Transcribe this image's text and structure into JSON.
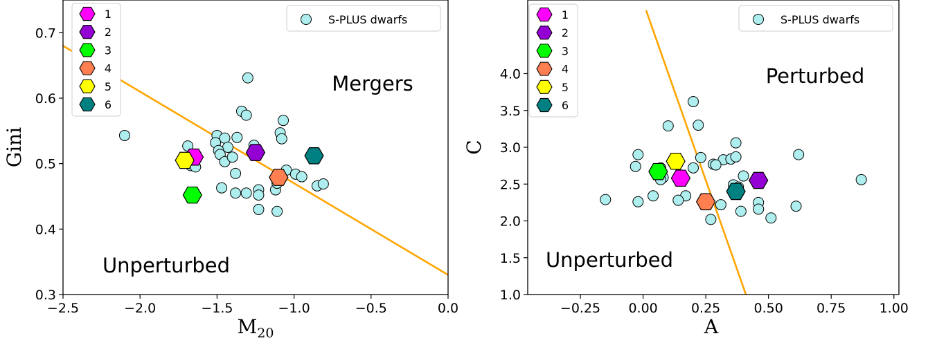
{
  "chart_data": [
    {
      "type": "scatter",
      "xlabel": "M",
      "xlabel_sub": "20",
      "ylabel": "Gini",
      "xlim": [
        -2.5,
        0.0
      ],
      "ylim": [
        0.3,
        0.75
      ],
      "xticks": [
        "−2.5",
        "−2.0",
        "−1.5",
        "−1.0",
        "−0.5",
        "0.0"
      ],
      "xtick_values": [
        -2.5,
        -2.0,
        -1.5,
        -1.0,
        -0.5,
        0.0
      ],
      "yticks": [
        "0.3",
        "0.4",
        "0.5",
        "0.6",
        "0.7"
      ],
      "ytick_values": [
        0.3,
        0.4,
        0.5,
        0.6,
        0.7
      ],
      "grid": false,
      "region_labels": {
        "upper": "Mergers",
        "lower": "Unperturbed"
      },
      "boundary_line": {
        "color": "#FFA500",
        "x": [
          -2.5,
          0.0
        ],
        "y": [
          0.68,
          0.33
        ]
      },
      "legend_left": {
        "placement": "top-left",
        "entries": [
          {
            "label": "1",
            "color": "#FF00FF"
          },
          {
            "label": "2",
            "color": "#9400D3"
          },
          {
            "label": "3",
            "color": "#00FF00"
          },
          {
            "label": "4",
            "color": "#FF7F50"
          },
          {
            "label": "5",
            "color": "#FFFF00"
          },
          {
            "label": "6",
            "color": "#008080"
          }
        ]
      },
      "legend_right": {
        "placement": "top-right",
        "label": "S-PLUS dwarfs",
        "color": "#AFEEEE"
      },
      "series": [
        {
          "name": "S-PLUS dwarfs",
          "color": "#AFEEEE",
          "points": [
            [
              -2.1,
              0.543
            ],
            [
              -1.3,
              0.631
            ],
            [
              -1.34,
              0.58
            ],
            [
              -1.31,
              0.574
            ],
            [
              -1.07,
              0.566
            ],
            [
              -1.09,
              0.547
            ],
            [
              -1.08,
              0.538
            ],
            [
              -1.5,
              0.543
            ],
            [
              -1.51,
              0.532
            ],
            [
              -1.45,
              0.539
            ],
            [
              -1.37,
              0.54
            ],
            [
              -1.26,
              0.528
            ],
            [
              -1.43,
              0.525
            ],
            [
              -1.49,
              0.52
            ],
            [
              -1.48,
              0.514
            ],
            [
              -1.45,
              0.503
            ],
            [
              -1.4,
              0.51
            ],
            [
              -1.69,
              0.527
            ],
            [
              -1.68,
              0.51
            ],
            [
              -1.67,
              0.497
            ],
            [
              -1.64,
              0.495
            ],
            [
              -1.38,
              0.485
            ],
            [
              -1.05,
              0.49
            ],
            [
              -0.99,
              0.484
            ],
            [
              -0.95,
              0.48
            ],
            [
              -1.47,
              0.463
            ],
            [
              -1.38,
              0.455
            ],
            [
              -1.31,
              0.455
            ],
            [
              -1.23,
              0.46
            ],
            [
              -1.23,
              0.452
            ],
            [
              -1.12,
              0.46
            ],
            [
              -1.11,
              0.47
            ],
            [
              -0.85,
              0.466
            ],
            [
              -0.81,
              0.469
            ],
            [
              -1.23,
              0.43
            ],
            [
              -1.11,
              0.427
            ]
          ]
        },
        {
          "name": "1",
          "color": "#FF00FF",
          "points": [
            [
              -1.65,
              0.51
            ]
          ]
        },
        {
          "name": "2",
          "color": "#9400D3",
          "points": [
            [
              -1.25,
              0.517
            ]
          ]
        },
        {
          "name": "3",
          "color": "#00FF00",
          "points": [
            [
              -1.66,
              0.452
            ]
          ]
        },
        {
          "name": "4",
          "color": "#FF7F50",
          "points": [
            [
              -1.1,
              0.479
            ]
          ]
        },
        {
          "name": "5",
          "color": "#FFFF00",
          "points": [
            [
              -1.71,
              0.505
            ]
          ]
        },
        {
          "name": "6",
          "color": "#008080",
          "points": [
            [
              -0.87,
              0.512
            ]
          ]
        }
      ]
    },
    {
      "type": "scatter",
      "xlabel": "A",
      "ylabel": "C",
      "xlim": [
        -0.46,
        1.02
      ],
      "ylim": [
        1.0,
        5.0
      ],
      "xticks": [
        "−0.25",
        "0.00",
        "0.25",
        "0.50",
        "0.75",
        "1.00"
      ],
      "xtick_values": [
        -0.25,
        0.0,
        0.25,
        0.5,
        0.75,
        1.0
      ],
      "yticks": [
        "1.0",
        "1.5",
        "2.0",
        "2.5",
        "3.0",
        "3.5",
        "4.0"
      ],
      "ytick_values": [
        1.0,
        1.5,
        2.0,
        2.5,
        3.0,
        3.5,
        4.0
      ],
      "grid": false,
      "region_labels": {
        "upper": "Perturbed",
        "lower": "Unperturbed"
      },
      "boundary_line": {
        "color": "#FFA500",
        "x": [
          0.012,
          0.41
        ],
        "y": [
          4.86,
          1.0
        ]
      },
      "legend_left": {
        "placement": "top-left",
        "entries": [
          {
            "label": "1",
            "color": "#FF00FF"
          },
          {
            "label": "2",
            "color": "#9400D3"
          },
          {
            "label": "3",
            "color": "#00FF00"
          },
          {
            "label": "4",
            "color": "#FF7F50"
          },
          {
            "label": "5",
            "color": "#FFFF00"
          },
          {
            "label": "6",
            "color": "#008080"
          }
        ]
      },
      "legend_right": {
        "placement": "top-right",
        "label": "S-PLUS dwarfs",
        "color": "#AFEEEE"
      },
      "series": [
        {
          "name": "S-PLUS dwarfs",
          "color": "#AFEEEE",
          "points": [
            [
              0.2,
              3.62
            ],
            [
              0.1,
              3.29
            ],
            [
              0.22,
              3.3
            ],
            [
              0.37,
              3.06
            ],
            [
              -0.02,
              2.9
            ],
            [
              0.62,
              2.9
            ],
            [
              0.23,
              2.86
            ],
            [
              0.32,
              2.83
            ],
            [
              0.35,
              2.84
            ],
            [
              0.37,
              2.87
            ],
            [
              -0.03,
              2.74
            ],
            [
              0.2,
              2.72
            ],
            [
              0.28,
              2.77
            ],
            [
              0.29,
              2.76
            ],
            [
              0.07,
              2.72
            ],
            [
              0.07,
              2.63
            ],
            [
              0.08,
              2.59
            ],
            [
              0.07,
              2.56
            ],
            [
              0.4,
              2.61
            ],
            [
              0.87,
              2.56
            ],
            [
              0.36,
              2.49
            ],
            [
              0.38,
              2.46
            ],
            [
              0.36,
              2.41
            ],
            [
              0.17,
              2.34
            ],
            [
              0.04,
              2.34
            ],
            [
              -0.15,
              2.29
            ],
            [
              -0.02,
              2.26
            ],
            [
              0.14,
              2.28
            ],
            [
              0.31,
              2.22
            ],
            [
              0.46,
              2.25
            ],
            [
              0.61,
              2.2
            ],
            [
              0.39,
              2.13
            ],
            [
              0.46,
              2.16
            ],
            [
              0.27,
              2.02
            ],
            [
              0.51,
              2.04
            ]
          ]
        },
        {
          "name": "1",
          "color": "#FF00FF",
          "points": [
            [
              0.15,
              2.58
            ]
          ]
        },
        {
          "name": "2",
          "color": "#9400D3",
          "points": [
            [
              0.46,
              2.55
            ]
          ]
        },
        {
          "name": "3",
          "color": "#00FF00",
          "points": [
            [
              0.06,
              2.67
            ]
          ]
        },
        {
          "name": "4",
          "color": "#FF7F50",
          "points": [
            [
              0.25,
              2.26
            ]
          ]
        },
        {
          "name": "5",
          "color": "#FFFF00",
          "points": [
            [
              0.13,
              2.81
            ]
          ]
        },
        {
          "name": "6",
          "color": "#008080",
          "points": [
            [
              0.37,
              2.4
            ]
          ]
        }
      ]
    }
  ]
}
